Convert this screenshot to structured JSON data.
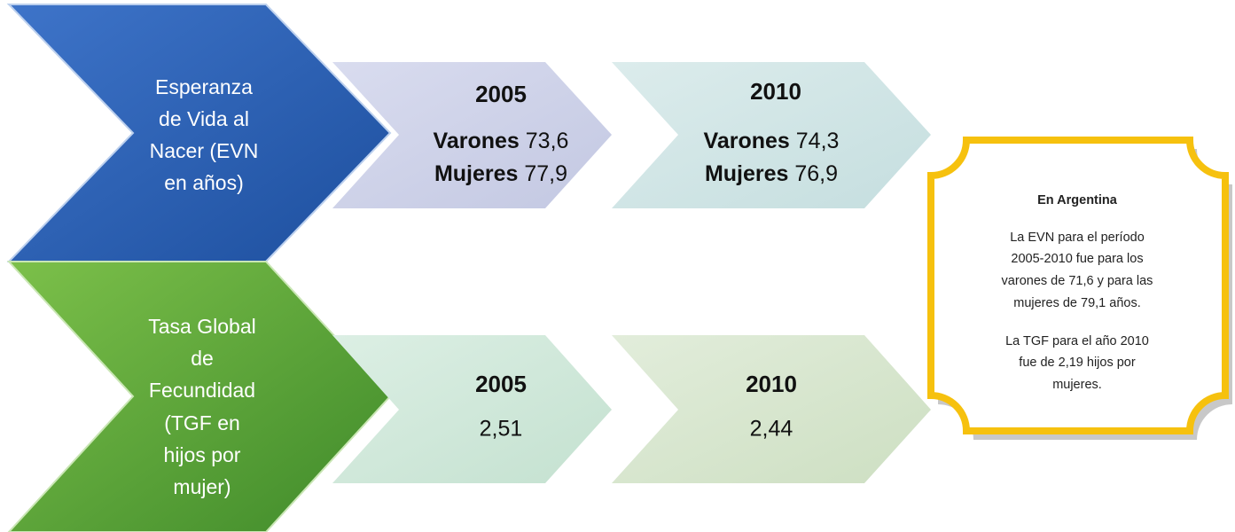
{
  "rows": [
    {
      "label": [
        "Esperanza",
        "de Vida al",
        "Nacer (EVN",
        "en años)"
      ],
      "periods": [
        {
          "year": "2005",
          "items": [
            {
              "label": "Varones",
              "value": "73,6"
            },
            {
              "label": "Mujeres",
              "value": "77,9"
            }
          ]
        },
        {
          "year": "2010",
          "items": [
            {
              "label": "Varones",
              "value": "74,3"
            },
            {
              "label": "Mujeres",
              "value": "76,9"
            }
          ]
        }
      ]
    },
    {
      "label": [
        "Tasa Global",
        "de",
        "Fecundidad",
        "(TGF en",
        "hijos por",
        "mujer)"
      ],
      "periods": [
        {
          "year": "2005",
          "value": "2,51"
        },
        {
          "year": "2010",
          "value": "2,44"
        }
      ]
    }
  ],
  "note": {
    "title": "En Argentina",
    "paragraphs": [
      [
        "La EVN para el período",
        "2005-2010 fue para los",
        "varones de 71,6 y para las",
        "mujeres de 79,1 años."
      ],
      [
        "La TGF para el año 2010",
        "fue de 2,19 hijos por",
        "mujeres."
      ]
    ]
  }
}
